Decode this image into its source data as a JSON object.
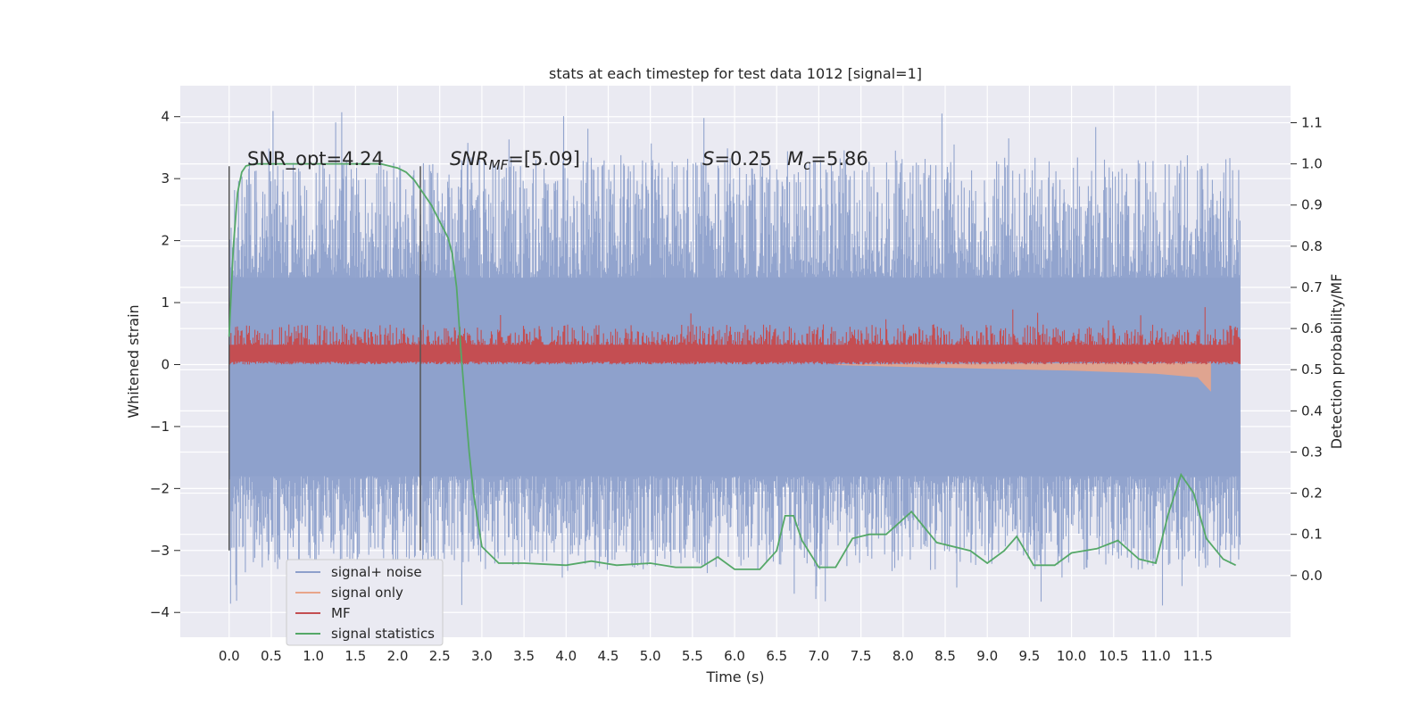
{
  "chart_data": {
    "type": "line",
    "title": "stats at each timestep for test data 1012 [signal=1]",
    "xlabel": "Time (s)",
    "ylabel": "Whitened strain",
    "y2label": "Detection probability/MF",
    "xlim": [
      -0.58,
      12.6
    ],
    "ylim": [
      -4.4,
      4.5
    ],
    "y2lim": [
      -0.15,
      1.19
    ],
    "x_ticks": [
      "0.0",
      "0.5",
      "1.0",
      "1.5",
      "2.0",
      "2.5",
      "3.0",
      "3.5",
      "4.0",
      "4.5",
      "5.0",
      "5.5",
      "6.0",
      "6.5",
      "7.0",
      "7.5",
      "8.0",
      "8.5",
      "9.0",
      "9.5",
      "10.0",
      "10.5",
      "11.0",
      "11.5"
    ],
    "y_ticks": [
      "4",
      "3",
      "2",
      "1",
      "0",
      "−1",
      "−2",
      "−3",
      "−4"
    ],
    "y2_ticks": [
      "1.1",
      "1.0",
      "0.9",
      "0.8",
      "0.7",
      "0.6",
      "0.5",
      "0.4",
      "0.3",
      "0.2",
      "0.1",
      "0.0"
    ],
    "grid": true,
    "legend_position": "lower-left",
    "annotations": {
      "snr_opt": "SNR_opt=4.24",
      "snr_mf_prefix": "SNR",
      "snr_mf_sub": "MF",
      "snr_mf_value": "=[5.09]",
      "s_label": "S",
      "s_value": "=0.25",
      "mc_label": "M",
      "mc_sub": "c",
      "mc_value": "=5.86"
    },
    "vlines": [
      0.0,
      2.27
    ],
    "series": [
      {
        "name": "signal+ noise",
        "color": "#8da0cb",
        "x_range": [
          0.0,
          12.0
        ],
        "band_low": -1.8,
        "band_high": 1.4,
        "spike_max": 4.1,
        "spike_min": -3.9
      },
      {
        "name": "signal only",
        "color": "#e8a58a",
        "x_range": [
          7.2,
          11.65
        ],
        "x": [
          7.2,
          8.0,
          9.0,
          10.0,
          11.0,
          11.5,
          11.65
        ],
        "y": [
          0.0,
          -0.03,
          -0.06,
          -0.09,
          -0.14,
          -0.2,
          -0.42
        ]
      },
      {
        "name": "MF",
        "color": "#c44e52",
        "x_range": [
          0.0,
          12.0
        ],
        "band_low": 0.05,
        "band_high": 0.45,
        "spike_max": 1.0
      },
      {
        "name": "signal statistics",
        "color": "#55a868",
        "axis": "right",
        "x": [
          0.0,
          0.05,
          0.1,
          0.15,
          0.2,
          0.3,
          0.5,
          1.0,
          1.5,
          1.8,
          2.0,
          2.1,
          2.2,
          2.3,
          2.4,
          2.5,
          2.6,
          2.65,
          2.7,
          2.75,
          2.8,
          2.85,
          2.9,
          3.0,
          3.2,
          3.5,
          4.0,
          4.3,
          4.6,
          5.0,
          5.3,
          5.6,
          5.8,
          6.0,
          6.3,
          6.5,
          6.6,
          6.7,
          6.8,
          7.0,
          7.2,
          7.4,
          7.6,
          7.8,
          8.1,
          8.4,
          8.8,
          9.0,
          9.2,
          9.35,
          9.55,
          9.8,
          10.0,
          10.3,
          10.55,
          10.8,
          11.0,
          11.15,
          11.3,
          11.45,
          11.6,
          11.8,
          11.95
        ],
        "y": [
          0.58,
          0.8,
          0.93,
          0.98,
          0.995,
          1.0,
          1.0,
          1.0,
          1.0,
          1.0,
          0.99,
          0.98,
          0.96,
          0.93,
          0.9,
          0.86,
          0.82,
          0.78,
          0.7,
          0.55,
          0.42,
          0.3,
          0.2,
          0.07,
          0.03,
          0.03,
          0.025,
          0.035,
          0.025,
          0.03,
          0.02,
          0.02,
          0.045,
          0.015,
          0.015,
          0.06,
          0.145,
          0.145,
          0.085,
          0.02,
          0.02,
          0.09,
          0.1,
          0.1,
          0.155,
          0.08,
          0.06,
          0.03,
          0.06,
          0.095,
          0.025,
          0.025,
          0.055,
          0.065,
          0.085,
          0.04,
          0.03,
          0.15,
          0.245,
          0.2,
          0.09,
          0.04,
          0.025
        ]
      }
    ]
  }
}
